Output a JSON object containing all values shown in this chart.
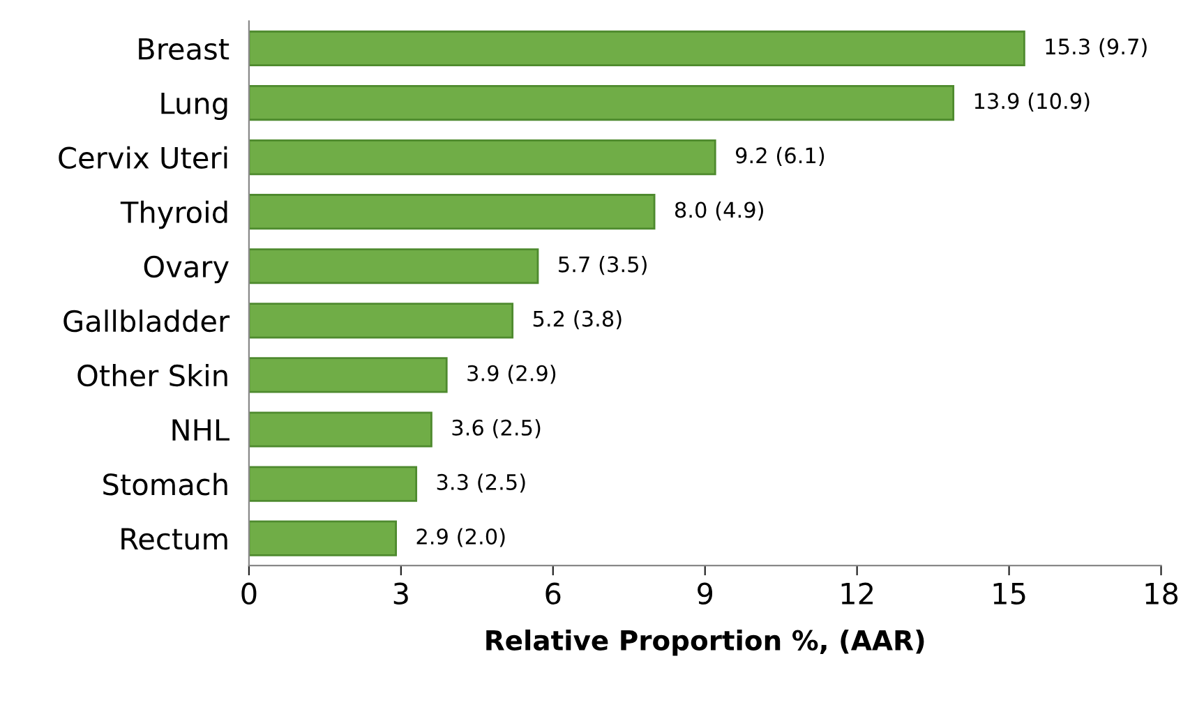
{
  "chart_data": {
    "type": "bar",
    "orientation": "horizontal",
    "categories": [
      "Breast",
      "Lung",
      "Cervix Uteri",
      "Thyroid",
      "Ovary",
      "Gallbladder",
      "Other Skin",
      "NHL",
      "Stomach",
      "Rectum"
    ],
    "values": [
      15.3,
      13.9,
      9.2,
      8.0,
      5.7,
      5.2,
      3.9,
      3.6,
      3.3,
      2.9
    ],
    "value_labels": [
      "15.3 (9.7)",
      "13.9 (10.9)",
      "9.2 (6.1)",
      "8.0 (4.9)",
      "5.7 (3.5)",
      "5.2 (3.8)",
      "3.9 (2.9)",
      "3.6 (2.5)",
      "3.3 (2.5)",
      "2.9 (2.0)"
    ],
    "color": "#70ad47",
    "xlabel": "Relative Proportion %, (AAR)",
    "xlim": [
      0,
      18
    ],
    "xticks": [
      0,
      3,
      6,
      9,
      12,
      15,
      18
    ],
    "grid": false,
    "legend": false
  }
}
